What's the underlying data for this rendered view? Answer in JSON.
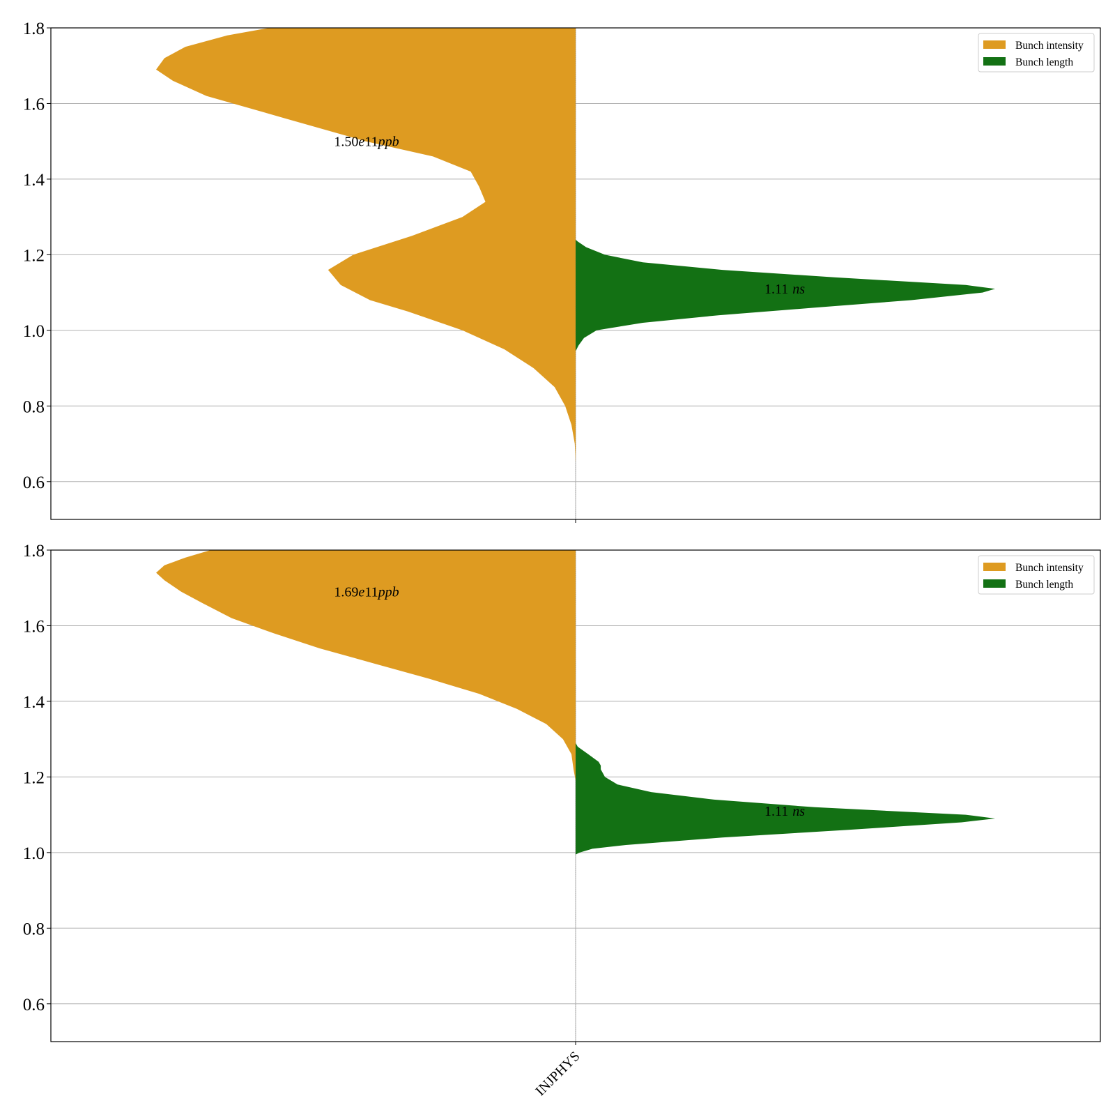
{
  "colors": {
    "intensity": "#de9b21",
    "length": "#137114",
    "grid": "#b0b0b0",
    "axis": "#000000",
    "legend_border": "#cccccc"
  },
  "chart_data": [
    {
      "type": "violin",
      "category": "INJPHYS",
      "ylim": [
        0.5,
        1.8
      ],
      "yticks": [
        "0.6",
        "0.8",
        "1.0",
        "1.2",
        "1.4",
        "1.6",
        "1.8"
      ],
      "grid": true,
      "legend": {
        "placement": "top-right",
        "entries": [
          "Bunch intensity",
          "Bunch length"
        ]
      },
      "series": [
        {
          "name": "Bunch intensity",
          "side": "left",
          "annotation": "1.50e11ppb",
          "annotation_parts": [
            "1.50",
            "e",
            "11",
            "ppb"
          ],
          "annotation_y": 1.5,
          "density_profile": [
            [
              0.65,
              0.0
            ],
            [
              0.7,
              0.002
            ],
            [
              0.75,
              0.01
            ],
            [
              0.8,
              0.025
            ],
            [
              0.85,
              0.05
            ],
            [
              0.9,
              0.1
            ],
            [
              0.95,
              0.17
            ],
            [
              1.0,
              0.27
            ],
            [
              1.05,
              0.4
            ],
            [
              1.08,
              0.49
            ],
            [
              1.12,
              0.56
            ],
            [
              1.16,
              0.59
            ],
            [
              1.2,
              0.53
            ],
            [
              1.25,
              0.39
            ],
            [
              1.3,
              0.27
            ],
            [
              1.34,
              0.215
            ],
            [
              1.38,
              0.23
            ],
            [
              1.42,
              0.25
            ],
            [
              1.46,
              0.34
            ],
            [
              1.5,
              0.5
            ],
            [
              1.56,
              0.69
            ],
            [
              1.62,
              0.88
            ],
            [
              1.66,
              0.96
            ],
            [
              1.69,
              1.0
            ],
            [
              1.72,
              0.98
            ],
            [
              1.75,
              0.93
            ],
            [
              1.78,
              0.83
            ],
            [
              1.8,
              0.73
            ]
          ]
        },
        {
          "name": "Bunch length",
          "side": "right",
          "annotation": "1.11 ns",
          "annotation_parts": [
            "1.11",
            "ns"
          ],
          "annotation_y": 1.11,
          "density_profile": [
            [
              0.945,
              0.0
            ],
            [
              0.96,
              0.007
            ],
            [
              0.98,
              0.02
            ],
            [
              1.0,
              0.05
            ],
            [
              1.02,
              0.16
            ],
            [
              1.04,
              0.34
            ],
            [
              1.06,
              0.57
            ],
            [
              1.08,
              0.8
            ],
            [
              1.1,
              0.97
            ],
            [
              1.11,
              1.0
            ],
            [
              1.12,
              0.93
            ],
            [
              1.14,
              0.62
            ],
            [
              1.16,
              0.35
            ],
            [
              1.18,
              0.16
            ],
            [
              1.2,
              0.07
            ],
            [
              1.22,
              0.025
            ],
            [
              1.235,
              0.005
            ],
            [
              1.24,
              0.0
            ]
          ]
        }
      ]
    },
    {
      "type": "violin",
      "category": "INJPHYS",
      "xlabel_tick": "INJPHYS",
      "ylim": [
        0.5,
        1.8
      ],
      "yticks": [
        "0.6",
        "0.8",
        "1.0",
        "1.2",
        "1.4",
        "1.6",
        "1.8"
      ],
      "grid": true,
      "legend": {
        "placement": "top-right",
        "entries": [
          "Bunch intensity",
          "Bunch length"
        ]
      },
      "series": [
        {
          "name": "Bunch intensity",
          "side": "left",
          "annotation": "1.69e11ppb",
          "annotation_parts": [
            "1.69",
            "e",
            "11",
            "ppb"
          ],
          "annotation_y": 1.69,
          "density_profile": [
            [
              1.19,
              0.0
            ],
            [
              1.22,
              0.005
            ],
            [
              1.26,
              0.01
            ],
            [
              1.3,
              0.03
            ],
            [
              1.34,
              0.07
            ],
            [
              1.38,
              0.14
            ],
            [
              1.42,
              0.23
            ],
            [
              1.46,
              0.35
            ],
            [
              1.5,
              0.48
            ],
            [
              1.54,
              0.61
            ],
            [
              1.58,
              0.72
            ],
            [
              1.62,
              0.82
            ],
            [
              1.66,
              0.89
            ],
            [
              1.69,
              0.94
            ],
            [
              1.72,
              0.98
            ],
            [
              1.74,
              1.0
            ],
            [
              1.76,
              0.98
            ],
            [
              1.78,
              0.93
            ],
            [
              1.8,
              0.87
            ]
          ]
        },
        {
          "name": "Bunch length",
          "side": "right",
          "annotation": "1.11 ns",
          "annotation_parts": [
            "1.11",
            "ns"
          ],
          "annotation_y": 1.11,
          "density_profile": [
            [
              0.995,
              0.0
            ],
            [
              1.0,
              0.01
            ],
            [
              1.01,
              0.04
            ],
            [
              1.02,
              0.12
            ],
            [
              1.04,
              0.35
            ],
            [
              1.06,
              0.65
            ],
            [
              1.08,
              0.92
            ],
            [
              1.09,
              1.0
            ],
            [
              1.1,
              0.93
            ],
            [
              1.12,
              0.57
            ],
            [
              1.14,
              0.33
            ],
            [
              1.16,
              0.18
            ],
            [
              1.18,
              0.1
            ],
            [
              1.2,
              0.07
            ],
            [
              1.22,
              0.06
            ],
            [
              1.23,
              0.06
            ],
            [
              1.24,
              0.055
            ],
            [
              1.26,
              0.03
            ],
            [
              1.28,
              0.005
            ],
            [
              1.29,
              0.0
            ]
          ]
        }
      ]
    }
  ]
}
